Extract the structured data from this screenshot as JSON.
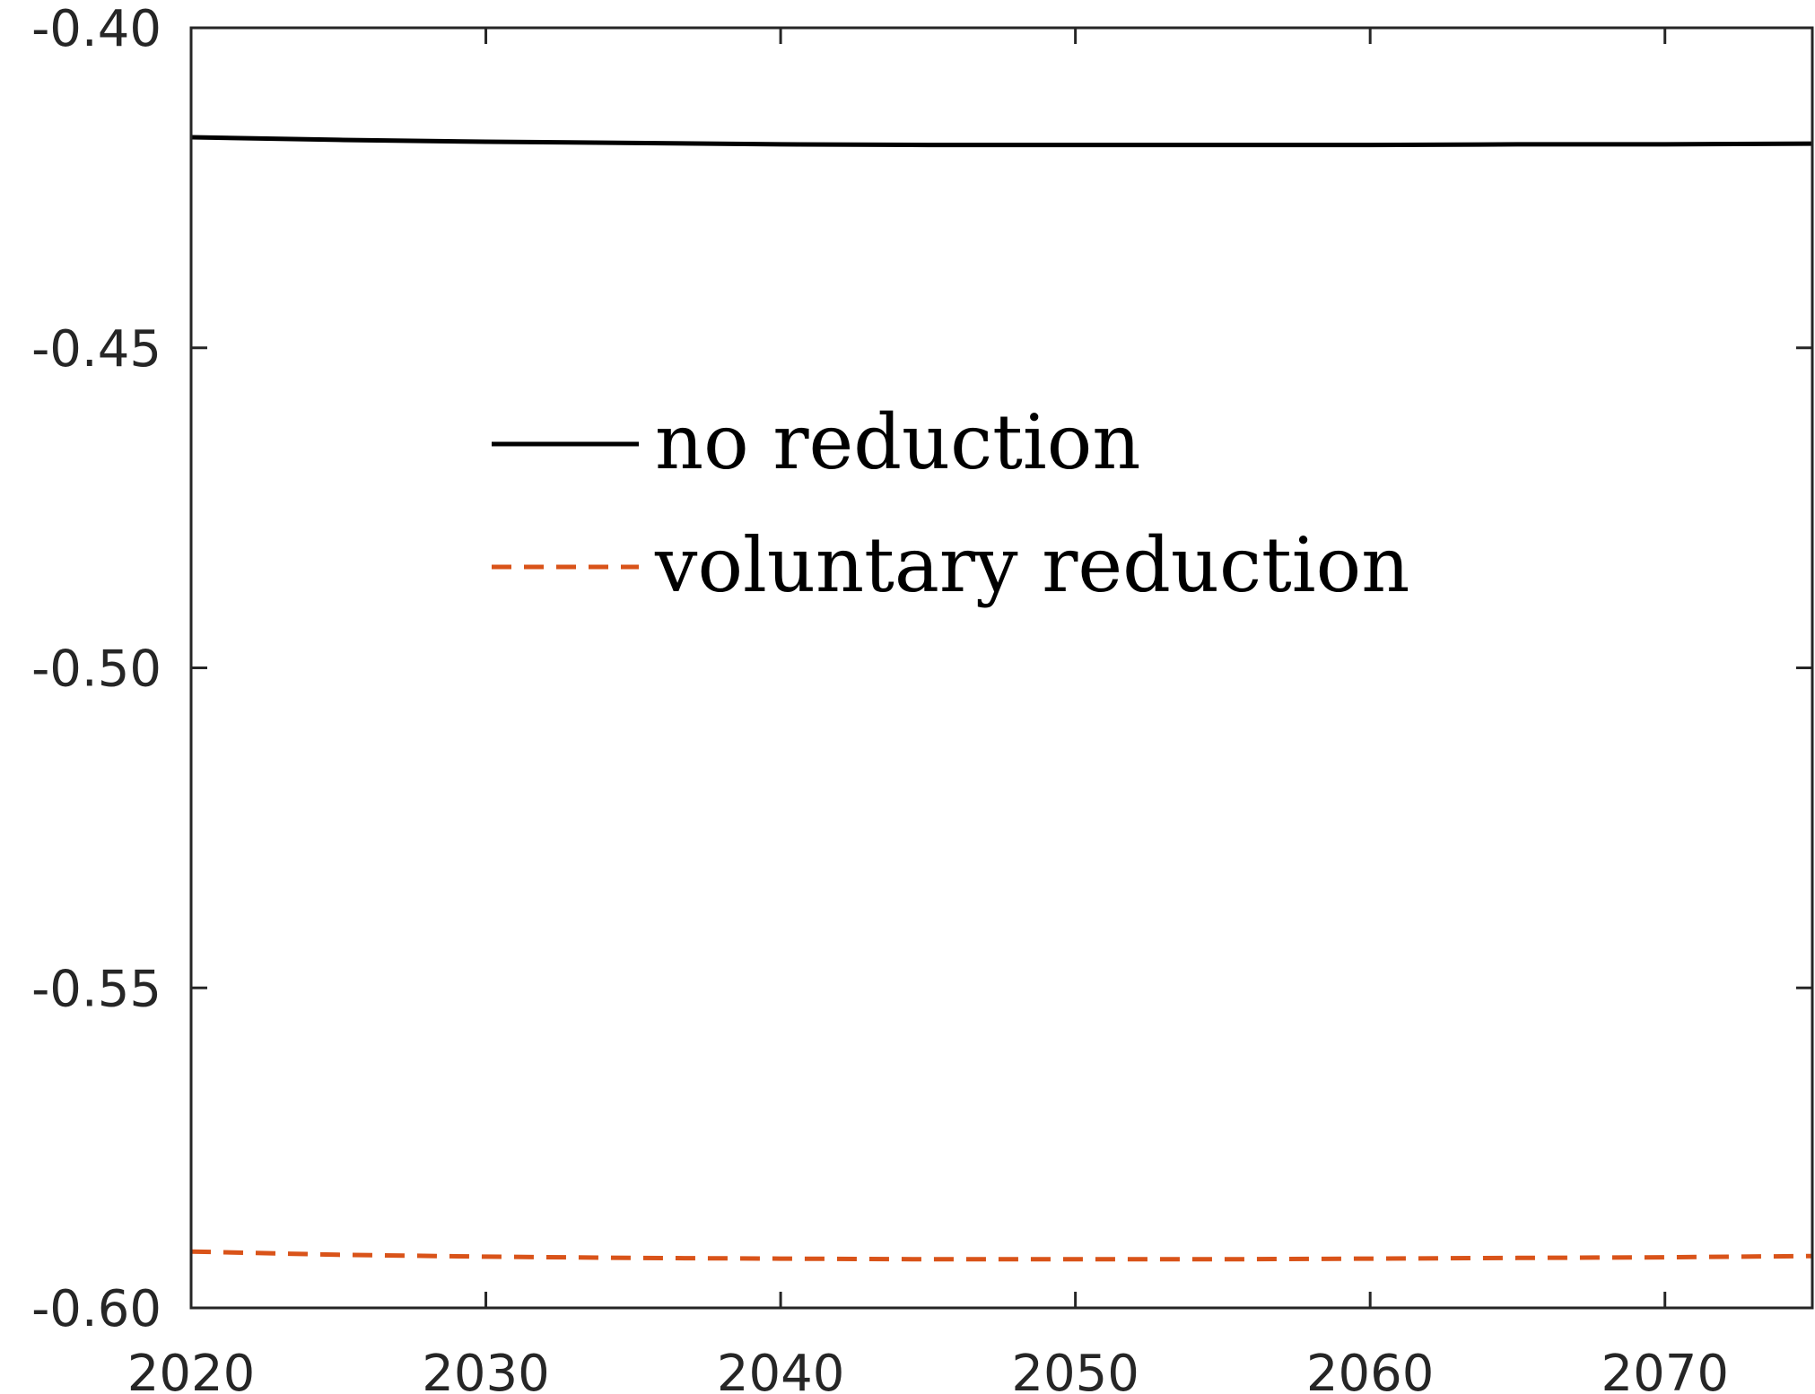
{
  "chart_data": {
    "type": "line",
    "title": "",
    "xlabel": "",
    "ylabel": "",
    "xlim": [
      2020,
      2075
    ],
    "ylim": [
      -0.6,
      -0.4
    ],
    "xticks": [
      2020,
      2030,
      2040,
      2050,
      2060,
      2070
    ],
    "xtick_labels": [
      "2020",
      "2030",
      "2040",
      "2050",
      "2060",
      "2070"
    ],
    "yticks": [
      -0.4,
      -0.45,
      -0.5,
      -0.55,
      -0.6
    ],
    "ytick_labels": [
      "-0.40",
      "-0.45",
      "-0.50",
      "-0.55",
      "-0.60"
    ],
    "grid": false,
    "legend_position": "upper-center",
    "series": [
      {
        "name": "no reduction",
        "color": "#000000",
        "style": "solid",
        "x": [
          2020,
          2025,
          2030,
          2035,
          2040,
          2045,
          2050,
          2055,
          2060,
          2065,
          2070,
          2075
        ],
        "y": [
          -0.4171,
          -0.4175,
          -0.4178,
          -0.418,
          -0.4182,
          -0.4183,
          -0.4183,
          -0.4183,
          -0.4183,
          -0.4182,
          -0.4182,
          -0.4181
        ]
      },
      {
        "name": "voluntary reduction",
        "color": "#D95319",
        "style": "dashed",
        "x": [
          2020,
          2025,
          2030,
          2035,
          2040,
          2045,
          2050,
          2055,
          2060,
          2065,
          2070,
          2075
        ],
        "y": [
          -0.5912,
          -0.5917,
          -0.592,
          -0.5922,
          -0.5923,
          -0.5924,
          -0.5924,
          -0.5924,
          -0.5923,
          -0.5922,
          -0.5921,
          -0.5919
        ]
      }
    ]
  }
}
